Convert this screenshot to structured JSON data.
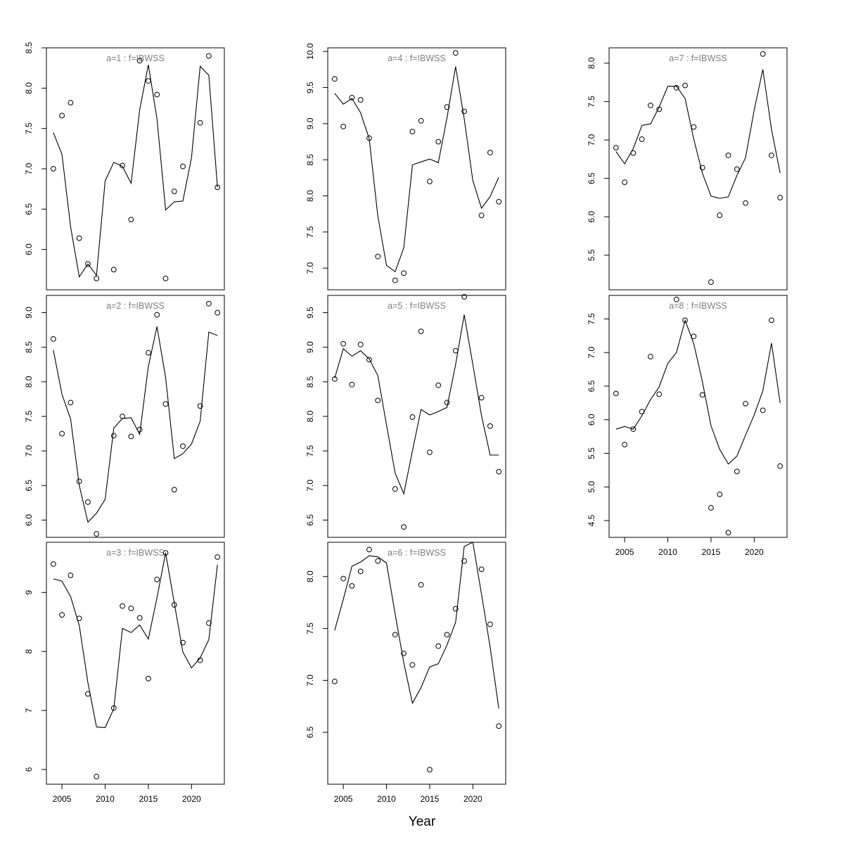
{
  "figure": {
    "xlabel": "Year",
    "point_color": "#000000",
    "line_color": "#000000",
    "title_color": "#7f7f7f"
  },
  "chart_data": [
    {
      "type": "scatter",
      "title": "a=1  :  f=IBWSS",
      "x": [
        2004,
        2005,
        2006,
        2007,
        2008,
        2009,
        2010,
        2011,
        2012,
        2013,
        2014,
        2015,
        2016,
        2017,
        2018,
        2019,
        2020,
        2021,
        2022,
        2023
      ],
      "series": [
        {
          "kind": "points",
          "values": [
            7.0,
            7.66,
            7.82,
            6.14,
            5.82,
            5.64,
            null,
            5.75,
            7.04,
            6.37,
            8.34,
            8.09,
            7.92,
            5.64,
            6.72,
            7.03,
            null,
            7.57,
            8.4,
            6.77
          ]
        },
        {
          "kind": "line",
          "values": [
            7.45,
            7.18,
            6.28,
            5.66,
            5.82,
            5.68,
            6.85,
            7.08,
            7.03,
            6.82,
            7.73,
            8.29,
            7.62,
            6.49,
            6.59,
            6.6,
            7.14,
            8.27,
            8.16,
            6.77
          ]
        }
      ],
      "ylim": [
        5.5,
        8.5
      ],
      "xlim": [
        2003.2,
        2023.8
      ],
      "yticks": [
        6.0,
        6.5,
        7.0,
        7.5,
        8.0,
        8.5
      ],
      "ytick_labels": [
        "6.0",
        "6.5",
        "7.0",
        "7.5",
        "8.0",
        "8.5"
      ],
      "xticks": [],
      "xtick_labels": []
    },
    {
      "type": "scatter",
      "title": "a=2  :  f=IBWSS",
      "x": [
        2004,
        2005,
        2006,
        2007,
        2008,
        2009,
        2010,
        2011,
        2012,
        2013,
        2014,
        2015,
        2016,
        2017,
        2018,
        2019,
        2020,
        2021,
        2022,
        2023
      ],
      "series": [
        {
          "kind": "points",
          "values": [
            8.62,
            7.25,
            7.7,
            6.56,
            6.26,
            5.8,
            null,
            7.22,
            7.5,
            7.21,
            7.31,
            8.42,
            8.97,
            7.68,
            6.44,
            7.07,
            null,
            7.65,
            9.13,
            9.0
          ]
        },
        {
          "kind": "line",
          "values": [
            8.46,
            7.82,
            7.46,
            6.5,
            5.97,
            6.1,
            6.3,
            7.33,
            7.47,
            7.48,
            7.24,
            8.22,
            8.8,
            8.06,
            6.89,
            6.96,
            7.1,
            7.43,
            8.72,
            8.67
          ]
        }
      ],
      "ylim": [
        5.75,
        9.25
      ],
      "xlim": [
        2003.2,
        2023.8
      ],
      "yticks": [
        6.0,
        6.5,
        7.0,
        7.5,
        8.0,
        8.5,
        9.0
      ],
      "ytick_labels": [
        "6.0",
        "6.5",
        "7.0",
        "7.5",
        "8.0",
        "8.5",
        "9.0"
      ],
      "xticks": [],
      "xtick_labels": []
    },
    {
      "type": "scatter",
      "title": "a=3  :  f=IBWSS",
      "x": [
        2004,
        2005,
        2006,
        2007,
        2008,
        2009,
        2010,
        2011,
        2012,
        2013,
        2014,
        2015,
        2016,
        2017,
        2018,
        2019,
        2020,
        2021,
        2022,
        2023
      ],
      "series": [
        {
          "kind": "points",
          "values": [
            9.48,
            8.62,
            9.29,
            8.56,
            7.28,
            5.88,
            null,
            7.04,
            8.77,
            8.73,
            8.57,
            7.54,
            9.22,
            9.67,
            8.79,
            8.15,
            null,
            7.85,
            8.48,
            9.6
          ]
        },
        {
          "kind": "line",
          "values": [
            9.23,
            9.19,
            8.93,
            8.44,
            7.47,
            6.72,
            6.71,
            7.03,
            8.39,
            8.32,
            8.45,
            8.21,
            8.91,
            9.67,
            8.82,
            7.99,
            7.72,
            7.89,
            8.2,
            9.47
          ]
        }
      ],
      "ylim": [
        5.75,
        9.85
      ],
      "xlim": [
        2003.2,
        2023.8
      ],
      "yticks": [
        6,
        7,
        8,
        9
      ],
      "ytick_labels": [
        "6",
        "7",
        "8",
        "9"
      ],
      "xticks": [
        2005,
        2010,
        2015,
        2020
      ],
      "xtick_labels": [
        "2005",
        "2010",
        "2015",
        "2020"
      ]
    },
    {
      "type": "scatter",
      "title": "a=4  :  f=IBWSS",
      "x": [
        2004,
        2005,
        2006,
        2007,
        2008,
        2009,
        2010,
        2011,
        2012,
        2013,
        2014,
        2015,
        2016,
        2017,
        2018,
        2019,
        2020,
        2021,
        2022,
        2023
      ],
      "series": [
        {
          "kind": "points",
          "values": [
            9.62,
            8.96,
            9.36,
            9.33,
            8.8,
            7.16,
            null,
            6.83,
            6.93,
            8.89,
            9.04,
            8.2,
            8.75,
            9.23,
            9.98,
            9.17,
            null,
            7.73,
            8.6,
            7.92
          ]
        },
        {
          "kind": "line",
          "values": [
            9.42,
            9.27,
            9.35,
            9.15,
            8.79,
            7.72,
            7.04,
            6.95,
            7.28,
            8.43,
            8.47,
            8.51,
            8.46,
            9.08,
            9.79,
            9.07,
            8.21,
            7.83,
            7.99,
            8.26
          ]
        }
      ],
      "ylim": [
        6.7,
        10.05
      ],
      "xlim": [
        2003.2,
        2023.8
      ],
      "yticks": [
        7.0,
        7.5,
        8.0,
        8.5,
        9.0,
        9.5,
        10.0
      ],
      "ytick_labels": [
        "7.0",
        "7.5",
        "8.0",
        "8.5",
        "9.0",
        "9.5",
        "10.0"
      ],
      "xticks": [],
      "xtick_labels": []
    },
    {
      "type": "scatter",
      "title": "a=5  :  f=IBWSS",
      "x": [
        2004,
        2005,
        2006,
        2007,
        2008,
        2009,
        2010,
        2011,
        2012,
        2013,
        2014,
        2015,
        2016,
        2017,
        2018,
        2019,
        2020,
        2021,
        2022,
        2023
      ],
      "series": [
        {
          "kind": "points",
          "values": [
            8.54,
            9.05,
            8.46,
            9.04,
            8.82,
            8.23,
            null,
            6.95,
            6.4,
            7.99,
            9.23,
            7.48,
            8.45,
            8.2,
            8.95,
            9.73,
            null,
            8.27,
            7.86,
            7.2
          ]
        },
        {
          "kind": "line",
          "values": [
            8.55,
            8.98,
            8.87,
            8.95,
            8.83,
            8.59,
            7.88,
            7.18,
            6.88,
            7.5,
            8.1,
            8.02,
            8.07,
            8.13,
            8.75,
            9.47,
            8.75,
            8.01,
            7.44,
            7.44
          ]
        }
      ],
      "ylim": [
        6.25,
        9.75
      ],
      "xlim": [
        2003.2,
        2023.8
      ],
      "yticks": [
        6.5,
        7.0,
        7.5,
        8.0,
        8.5,
        9.0,
        9.5
      ],
      "ytick_labels": [
        "6.5",
        "7.0",
        "7.5",
        "8.0",
        "8.5",
        "9.0",
        "9.5"
      ],
      "xticks": [],
      "xtick_labels": []
    },
    {
      "type": "scatter",
      "title": "a=6  :  f=IBWSS",
      "x": [
        2004,
        2005,
        2006,
        2007,
        2008,
        2009,
        2010,
        2011,
        2012,
        2013,
        2014,
        2015,
        2016,
        2017,
        2018,
        2019,
        2020,
        2021,
        2022,
        2023
      ],
      "series": [
        {
          "kind": "points",
          "values": [
            6.99,
            7.98,
            7.91,
            8.05,
            8.26,
            8.15,
            null,
            7.44,
            7.26,
            7.15,
            7.92,
            6.14,
            7.33,
            7.44,
            7.69,
            8.15,
            null,
            8.07,
            7.54,
            6.56
          ]
        },
        {
          "kind": "line",
          "values": [
            7.48,
            7.78,
            8.1,
            8.14,
            8.2,
            8.19,
            8.13,
            7.64,
            7.17,
            6.78,
            6.93,
            7.13,
            7.16,
            7.34,
            7.56,
            8.29,
            8.33,
            7.83,
            7.32,
            6.73
          ]
        }
      ],
      "ylim": [
        6.0,
        8.33
      ],
      "xlim": [
        2003.2,
        2023.8
      ],
      "yticks": [
        6.5,
        7.0,
        7.5,
        8.0
      ],
      "ytick_labels": [
        "6.5",
        "7.0",
        "7.5",
        "8.0"
      ],
      "xticks": [
        2005,
        2010,
        2015,
        2020
      ],
      "xtick_labels": [
        "2005",
        "2010",
        "2015",
        "2020"
      ]
    },
    {
      "type": "scatter",
      "title": "a=7  :  f=IBWSS",
      "x": [
        2004,
        2005,
        2006,
        2007,
        2008,
        2009,
        2010,
        2011,
        2012,
        2013,
        2014,
        2015,
        2016,
        2017,
        2018,
        2019,
        2020,
        2021,
        2022,
        2023
      ],
      "series": [
        {
          "kind": "points",
          "values": [
            6.9,
            6.45,
            6.83,
            7.01,
            7.45,
            7.4,
            null,
            7.68,
            7.71,
            7.17,
            6.64,
            5.15,
            6.02,
            6.8,
            6.62,
            6.18,
            null,
            8.12,
            6.8,
            6.25
          ]
        },
        {
          "kind": "line",
          "values": [
            6.85,
            6.69,
            6.89,
            7.19,
            7.21,
            7.43,
            7.7,
            7.7,
            7.54,
            7.01,
            6.57,
            6.27,
            6.24,
            6.26,
            6.54,
            6.77,
            7.39,
            7.92,
            7.14,
            6.57
          ]
        }
      ],
      "ylim": [
        5.05,
        8.2
      ],
      "xlim": [
        2003.2,
        2023.8
      ],
      "yticks": [
        5.5,
        6.0,
        6.5,
        7.0,
        7.5,
        8.0
      ],
      "ytick_labels": [
        "5.5",
        "6.0",
        "6.5",
        "7.0",
        "7.5",
        "8.0"
      ],
      "xticks": [],
      "xtick_labels": []
    },
    {
      "type": "scatter",
      "title": "a=8  :  f=IBWSS",
      "x": [
        2004,
        2005,
        2006,
        2007,
        2008,
        2009,
        2010,
        2011,
        2012,
        2013,
        2014,
        2015,
        2016,
        2017,
        2018,
        2019,
        2020,
        2021,
        2022,
        2023
      ],
      "series": [
        {
          "kind": "points",
          "values": [
            6.39,
            5.63,
            5.86,
            6.12,
            6.94,
            6.38,
            null,
            7.79,
            7.48,
            7.24,
            6.37,
            4.69,
            4.89,
            4.32,
            5.23,
            6.24,
            null,
            6.14,
            7.48,
            5.31
          ]
        },
        {
          "kind": "line",
          "values": [
            5.86,
            5.9,
            5.86,
            6.06,
            6.3,
            6.49,
            6.84,
            7.0,
            7.48,
            7.13,
            6.57,
            5.91,
            5.56,
            5.34,
            5.46,
            5.77,
            6.07,
            6.43,
            7.14,
            6.25
          ]
        }
      ],
      "ylim": [
        4.25,
        7.85
      ],
      "xlim": [
        2003.2,
        2023.8
      ],
      "yticks": [
        4.5,
        5.0,
        5.5,
        6.0,
        6.5,
        7.0,
        7.5
      ],
      "ytick_labels": [
        "4.5",
        "5.0",
        "5.5",
        "6.0",
        "6.5",
        "7.0",
        "7.5"
      ],
      "xticks": [
        2005,
        2010,
        2015,
        2020
      ],
      "xtick_labels": [
        "2005",
        "2010",
        "2015",
        "2020"
      ]
    }
  ]
}
